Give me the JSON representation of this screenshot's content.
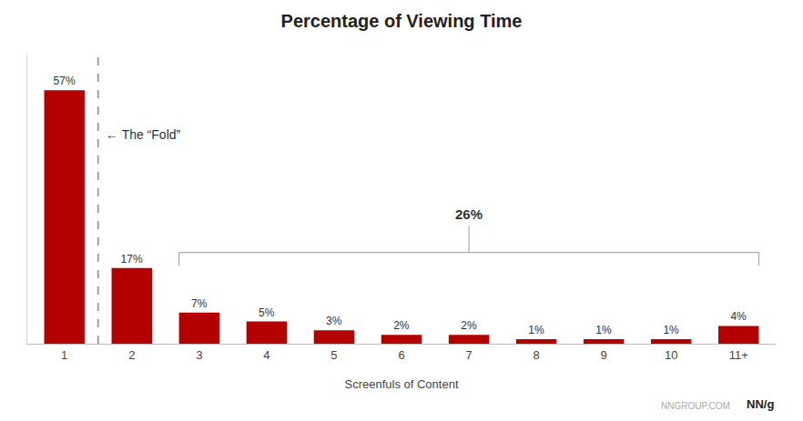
{
  "chart_data": {
    "type": "bar",
    "title": "Percentage of Viewing Time",
    "xlabel": "Screenfuls of Content",
    "categories": [
      "1",
      "2",
      "3",
      "4",
      "5",
      "6",
      "7",
      "8",
      "9",
      "10",
      "11+"
    ],
    "values": [
      57,
      17,
      7,
      5,
      3,
      2,
      2,
      1,
      1,
      1,
      4
    ],
    "value_labels": [
      "57%",
      "17%",
      "7%",
      "5%",
      "3%",
      "2%",
      "2%",
      "1%",
      "1%",
      "1%",
      "4%"
    ],
    "data_labels": true,
    "color": "#b50000",
    "ylim": [
      0,
      65
    ],
    "tick_labels": "x",
    "grid": false,
    "annotations": [
      "← The “Fold”",
      "26%",
      "NNGROUP.COM",
      "NN/g"
    ]
  }
}
